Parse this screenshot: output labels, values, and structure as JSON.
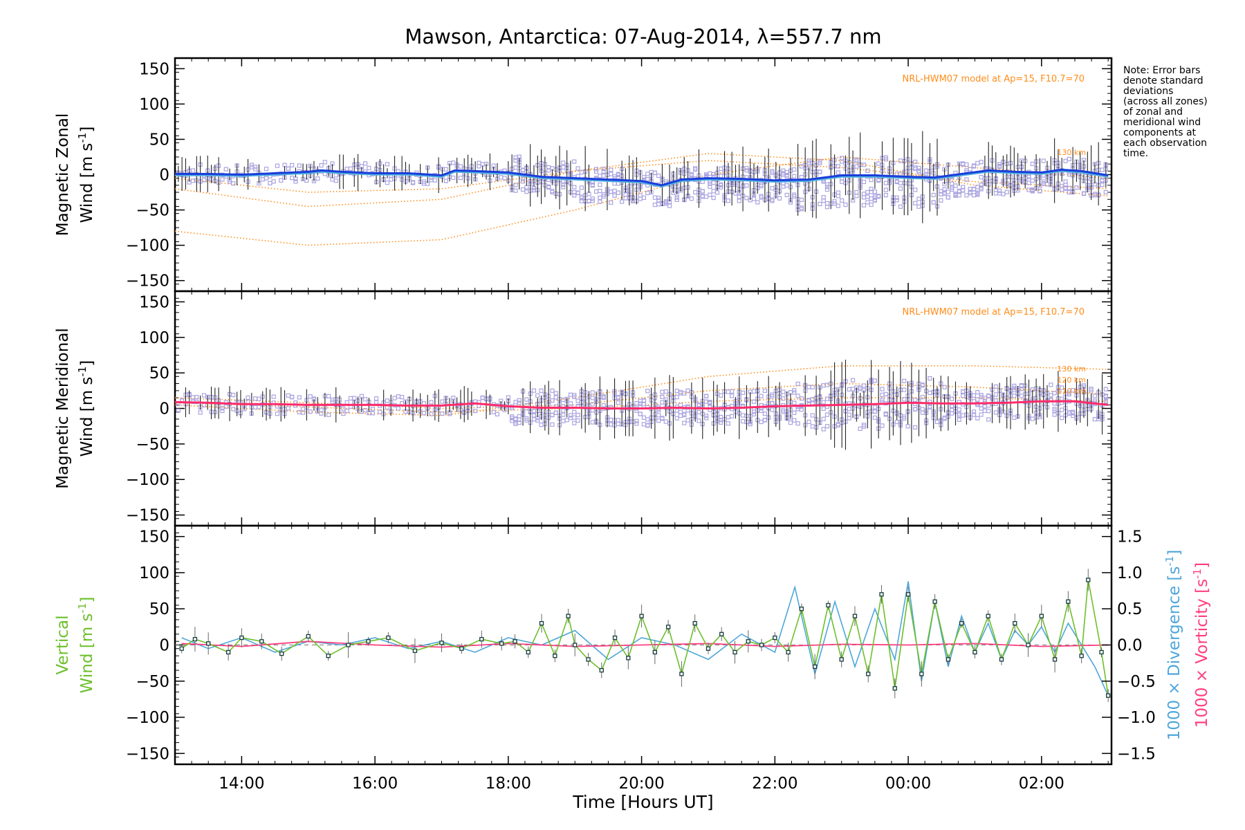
{
  "title": "Mawson, Antarctica: 07-Aug-2014, λ=557.7 nm",
  "note_lines": [
    "Note: Error bars",
    "denote standard",
    "deviations",
    "(across all zones)",
    "of zonal and",
    "meridional wind",
    "components at",
    "each observation",
    "time."
  ],
  "x_axis": {
    "label": "Time [Hours UT]",
    "range_hours": [
      13.0,
      27.05
    ],
    "ticks": [
      "14:00",
      "16:00",
      "18:00",
      "20:00",
      "22:00",
      "00:00",
      "02:00"
    ],
    "tick_hours": [
      14,
      16,
      18,
      20,
      22,
      24,
      26
    ]
  },
  "colors": {
    "zonal_mean": "#1a3ddb",
    "zonal_light": "#4fb0e0",
    "meridional_mean": "#ff2a6a",
    "hwm": "#ff8c1a",
    "zone_points": "#a9a3e0",
    "vertical": "#6cbf2a",
    "divergence": "#4ea6d9",
    "vorticity": "#ff3d7f",
    "errorbar": "#222222"
  },
  "panels": {
    "zonal": {
      "ylabel_top": "Magnetic Zonal",
      "ylabel_bottom": "Wind [m s",
      "ylabel_sup": "-1",
      "ylabel_close": "]",
      "ylim": [
        -165,
        165
      ],
      "yticks": [
        "150",
        "100",
        "50",
        "0",
        "−50",
        "−100",
        "−150"
      ],
      "ytick_values": [
        150,
        100,
        50,
        0,
        -50,
        -100,
        -150
      ],
      "model_label": "NRL-HWM07 model at Ap=15, F10.7=70",
      "altitude_labels": [
        "130 km"
      ]
    },
    "meridional": {
      "ylabel_top": "Magnetic Meridional",
      "ylabel_bottom": "Wind [m s",
      "ylabel_sup": "-1",
      "ylabel_close": "]",
      "ylim": [
        -165,
        165
      ],
      "yticks": [
        "150",
        "100",
        "50",
        "0",
        "−50",
        "−100",
        "−150"
      ],
      "ytick_values": [
        150,
        100,
        50,
        0,
        -50,
        -100,
        -150
      ],
      "model_label": "NRL-HWM07 model at Ap=15, F10.7=70",
      "altitude_labels": [
        "130 km",
        "120 km",
        "110 km"
      ]
    },
    "vertical": {
      "ylabel_top": "Vertical",
      "ylabel_bottom": "Wind [m s",
      "ylabel_sup": "-1",
      "ylabel_close": "]",
      "ylim": [
        -165,
        165
      ],
      "yticks": [
        "150",
        "100",
        "50",
        "0",
        "−50",
        "−100",
        "−150"
      ],
      "ytick_values": [
        150,
        100,
        50,
        0,
        -50,
        -100,
        -150
      ],
      "right_ylim": [
        -1.65,
        1.65
      ],
      "right_yticks": [
        "1.5",
        "1.0",
        "0.5",
        "0.0",
        "−0.5",
        "−1.0",
        "−1.5"
      ],
      "right_ytick_values": [
        1.5,
        1.0,
        0.5,
        0.0,
        -0.5,
        -1.0,
        -1.5
      ],
      "right_label_div": "1000 × Divergence [s",
      "right_label_vor": "1000 × Vorticity [s",
      "right_label_sup": "-1",
      "right_label_close": "]"
    }
  },
  "chart_data": [
    {
      "type": "line",
      "panel": "Magnetic Zonal Wind",
      "series": [
        {
          "x": [
            13.0,
            13.5,
            14.0,
            14.5,
            15.0,
            15.2,
            15.5,
            16.0,
            16.5,
            17.0,
            17.2,
            17.5,
            18.0,
            18.5,
            19.0,
            19.5,
            20.0,
            20.3,
            20.6,
            21.0,
            21.5,
            22.0,
            22.5,
            23.0,
            23.5,
            24.0,
            24.4,
            24.8,
            25.2,
            25.6,
            26.0,
            26.3,
            26.6,
            27.0
          ],
          "y": [
            1,
            1,
            0,
            2,
            4,
            6,
            4,
            2,
            2,
            -1,
            6,
            5,
            3,
            -3,
            -5,
            -7,
            -9,
            -15,
            -7,
            -5,
            -6,
            -8,
            -7,
            -1,
            -1,
            -3,
            -4,
            1,
            6,
            4,
            3,
            7,
            5,
            -1
          ]
        }
      ],
      "hwm_model": [
        {
          "x": [
            13.0,
            15.0,
            17.0,
            19.0,
            21.0,
            23.0,
            25.0,
            27.0
          ],
          "y": [
            -80,
            -100,
            -92,
            -50,
            0,
            25,
            10,
            -5
          ]
        },
        {
          "x": [
            13.0,
            15.0,
            17.0,
            19.0,
            21.0,
            23.0,
            25.0,
            27.0
          ],
          "y": [
            -20,
            -45,
            -35,
            5,
            30,
            20,
            -15,
            -30
          ]
        },
        {
          "x": [
            13.0,
            15.0,
            17.0,
            19.0,
            21.0,
            23.0,
            25.0,
            27.0
          ],
          "y": [
            -5,
            -25,
            -20,
            5,
            20,
            10,
            -10,
            -20
          ]
        }
      ]
    },
    {
      "type": "line",
      "panel": "Magnetic Meridional Wind",
      "series": [
        {
          "x": [
            13.0,
            13.5,
            14.0,
            14.5,
            15.0,
            15.5,
            16.0,
            16.5,
            17.0,
            17.5,
            18.0,
            18.5,
            19.0,
            19.5,
            20.0,
            20.5,
            21.0,
            21.5,
            22.0,
            22.5,
            23.0,
            23.5,
            24.0,
            24.5,
            25.0,
            25.5,
            26.0,
            26.5,
            27.0
          ],
          "y": [
            9,
            8,
            6,
            6,
            5,
            5,
            5,
            4,
            4,
            7,
            3,
            1,
            1,
            0,
            0,
            1,
            0,
            1,
            3,
            4,
            5,
            6,
            8,
            7,
            7,
            8,
            10,
            10,
            5
          ]
        }
      ],
      "hwm_model": [
        {
          "x": [
            13.0,
            15.0,
            17.0,
            19.0,
            21.0,
            23.0,
            25.0,
            27.0
          ],
          "y": [
            5,
            -5,
            -10,
            15,
            45,
            60,
            60,
            55
          ]
        },
        {
          "x": [
            13.0,
            15.0,
            17.0,
            19.0,
            21.0,
            23.0,
            25.0,
            27.0
          ],
          "y": [
            15,
            8,
            0,
            5,
            25,
            35,
            30,
            20
          ]
        },
        {
          "x": [
            13.0,
            15.0,
            17.0,
            19.0,
            21.0,
            23.0,
            25.0,
            27.0
          ],
          "y": [
            8,
            2,
            -5,
            0,
            10,
            15,
            15,
            10
          ]
        }
      ]
    },
    {
      "type": "line",
      "panel": "Vertical Wind",
      "series": [
        {
          "x": [
            13.1,
            13.3,
            13.5,
            13.8,
            14.0,
            14.3,
            14.6,
            15.0,
            15.3,
            15.6,
            15.9,
            16.2,
            16.6,
            17.0,
            17.3,
            17.6,
            17.9,
            18.1,
            18.3,
            18.5,
            18.7,
            18.9,
            19.0,
            19.2,
            19.4,
            19.6,
            19.8,
            20.0,
            20.2,
            20.4,
            20.6,
            20.8,
            21.0,
            21.2,
            21.4,
            21.6,
            21.8,
            22.0,
            22.2,
            22.4,
            22.6,
            22.8,
            23.0,
            23.2,
            23.4,
            23.6,
            23.8,
            24.0,
            24.2,
            24.4,
            24.6,
            24.8,
            25.0,
            25.2,
            25.4,
            25.6,
            25.8,
            26.0,
            26.2,
            26.4,
            26.6,
            26.7,
            26.9,
            27.0
          ],
          "y": [
            -5,
            8,
            2,
            -10,
            10,
            5,
            -12,
            12,
            -15,
            0,
            5,
            10,
            -8,
            3,
            -5,
            8,
            2,
            5,
            -10,
            30,
            -15,
            40,
            0,
            -20,
            -35,
            10,
            -18,
            40,
            -10,
            25,
            -40,
            30,
            -5,
            15,
            -10,
            5,
            0,
            10,
            -10,
            50,
            -30,
            55,
            -20,
            40,
            -40,
            70,
            -60,
            70,
            -40,
            60,
            -20,
            30,
            -10,
            40,
            -20,
            30,
            0,
            40,
            -20,
            60,
            -15,
            90,
            -10,
            -70
          ]
        }
      ],
      "divergence": {
        "x": [
          13.1,
          13.5,
          14.0,
          14.5,
          15.0,
          15.5,
          16.0,
          16.5,
          17.0,
          17.5,
          18.0,
          18.5,
          19.0,
          19.5,
          20.0,
          20.5,
          21.0,
          21.5,
          22.0,
          22.3,
          22.6,
          22.9,
          23.2,
          23.5,
          23.8,
          24.0,
          24.2,
          24.4,
          24.6,
          24.8,
          25.0,
          25.2,
          25.4,
          25.6,
          25.8,
          26.0,
          26.2,
          26.4,
          26.6,
          26.8,
          27.0
        ],
        "y": [
          0.1,
          -0.05,
          0.1,
          -0.1,
          0.05,
          0.0,
          0.1,
          -0.05,
          0.05,
          -0.1,
          0.1,
          0.0,
          0.2,
          -0.2,
          0.1,
          0.0,
          -0.2,
          0.15,
          -0.1,
          0.8,
          -0.4,
          0.6,
          -0.3,
          0.5,
          -0.2,
          0.88,
          -0.5,
          0.6,
          -0.3,
          0.4,
          -0.1,
          0.3,
          -0.2,
          0.2,
          0.0,
          0.25,
          -0.1,
          0.3,
          0.0,
          -0.3,
          -0.7
        ]
      },
      "vorticity": {
        "x": [
          13.1,
          14.0,
          15.0,
          16.0,
          17.0,
          18.0,
          19.0,
          20.0,
          21.0,
          22.0,
          23.0,
          24.0,
          25.0,
          26.0,
          27.0
        ],
        "y": [
          0.02,
          -0.02,
          0.05,
          0.0,
          -0.03,
          0.02,
          -0.02,
          0.0,
          0.02,
          -0.02,
          0.01,
          0.0,
          0.02,
          -0.02,
          0.0
        ]
      }
    }
  ]
}
